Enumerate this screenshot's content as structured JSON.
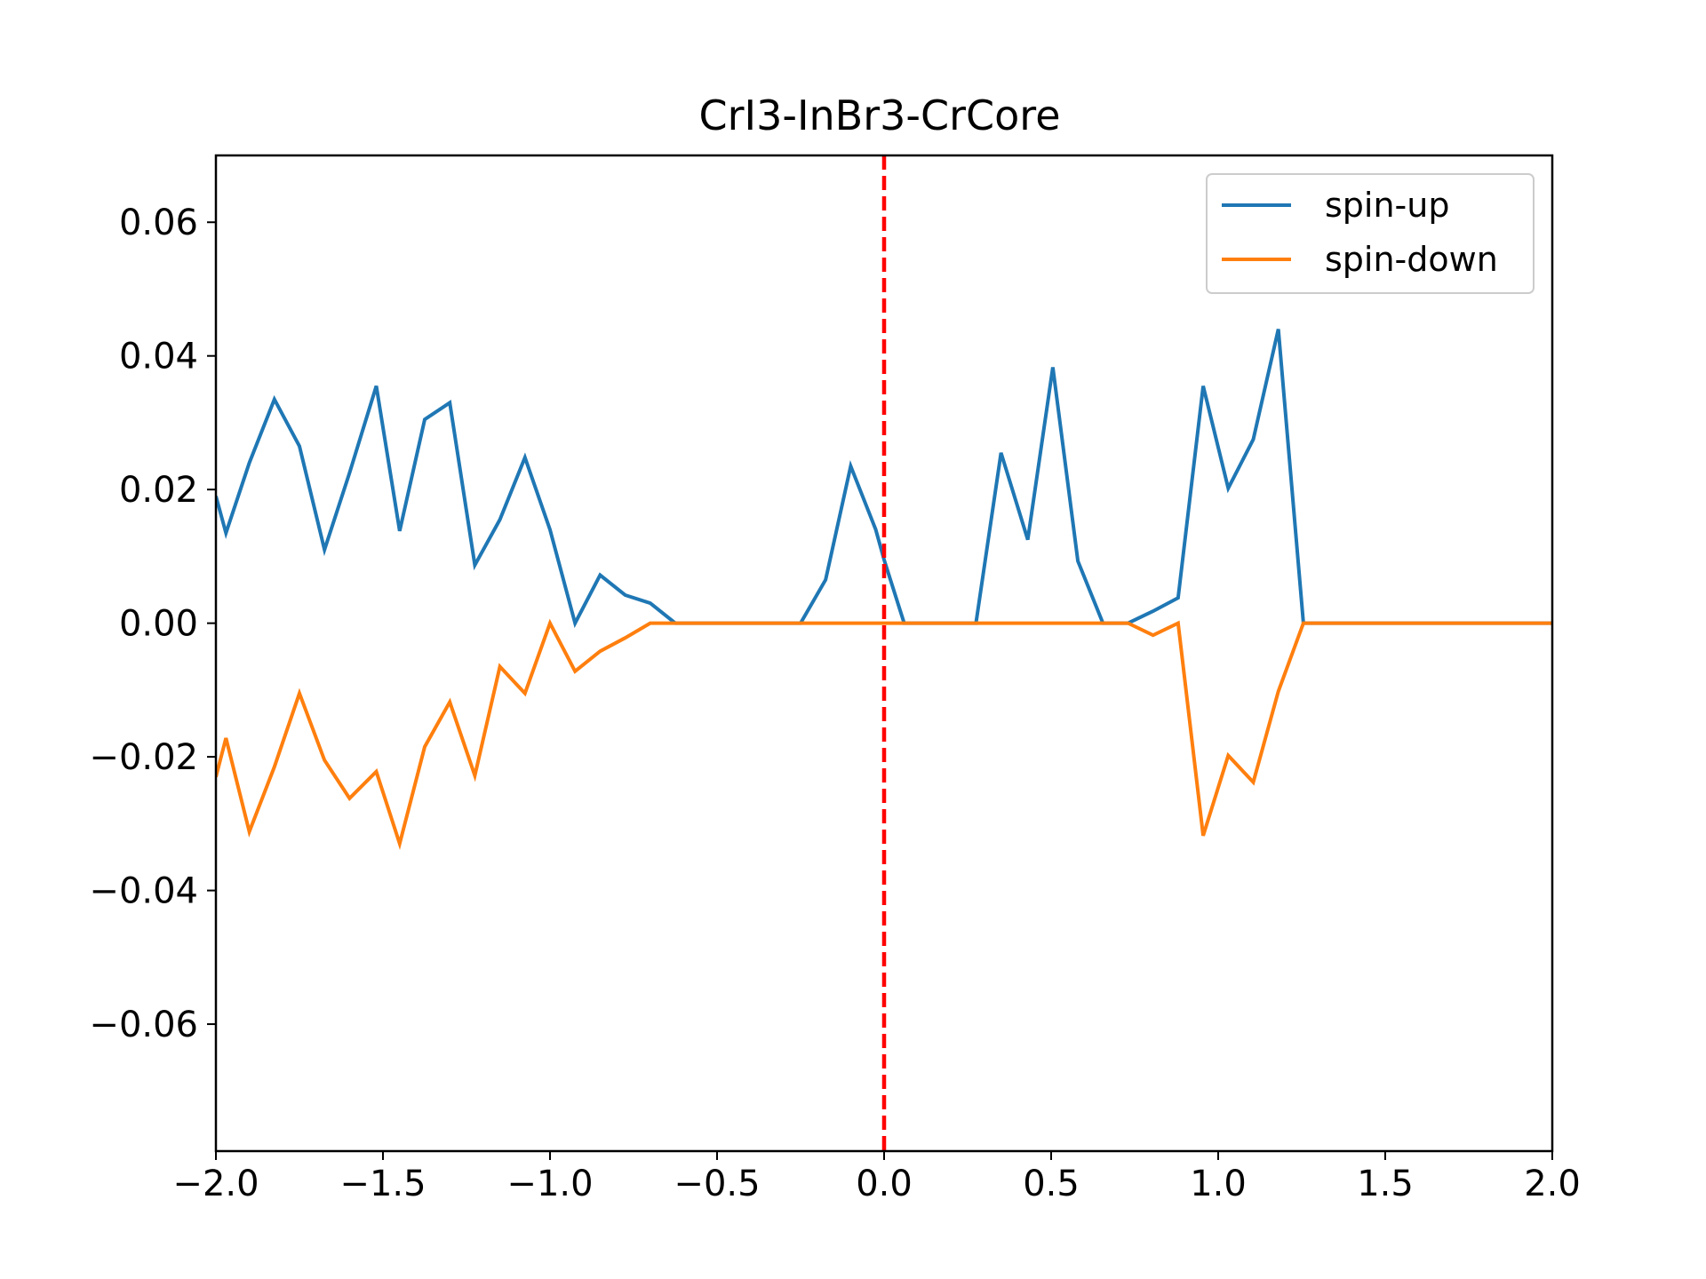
{
  "chart_data": {
    "type": "line",
    "title": "CrI3-InBr3-CrCore",
    "xlabel": "",
    "ylabel": "",
    "xlim": [
      -2.0,
      2.0
    ],
    "ylim": [
      -0.079,
      0.07
    ],
    "xticks": [
      -2.0,
      -1.5,
      -1.0,
      -0.5,
      0.0,
      0.5,
      1.0,
      1.5,
      2.0
    ],
    "xtick_labels": [
      "−2.0",
      "−1.5",
      "−1.0",
      "−0.5",
      "0.0",
      "0.5",
      "1.0",
      "1.5",
      "2.0"
    ],
    "yticks": [
      -0.06,
      -0.04,
      -0.02,
      0.0,
      0.02,
      0.04,
      0.06
    ],
    "ytick_labels": [
      "−0.06",
      "−0.04",
      "−0.02",
      "0.00",
      "0.02",
      "0.04",
      "0.06"
    ],
    "grid": false,
    "legend_position": "top-right",
    "vline": {
      "x": 0.0,
      "color": "#ff0000",
      "style": "dashed"
    },
    "series": [
      {
        "name": "spin-up",
        "color": "#1f77b4",
        "x": [
          -2.0,
          -1.97,
          -1.9,
          -1.825,
          -1.75,
          -1.675,
          -1.6,
          -1.52,
          -1.45,
          -1.375,
          -1.3,
          -1.225,
          -1.15,
          -1.075,
          -1.0,
          -0.925,
          -0.85,
          -0.775,
          -0.7,
          -0.625,
          -0.55,
          -0.475,
          -0.4,
          -0.325,
          -0.25,
          -0.175,
          -0.1,
          -0.025,
          0.0,
          0.06,
          0.125,
          0.2,
          0.275,
          0.35,
          0.43,
          0.505,
          0.58,
          0.655,
          0.73,
          0.805,
          0.88,
          0.955,
          1.03,
          1.105,
          1.18,
          1.255,
          1.33,
          1.5,
          1.75,
          2.0
        ],
        "y": [
          0.019,
          0.0135,
          0.024,
          0.0335,
          0.0265,
          0.011,
          0.0225,
          0.0355,
          0.0138,
          0.0305,
          0.033,
          0.0087,
          0.0155,
          0.0248,
          0.014,
          0.0,
          0.0072,
          0.0042,
          0.003,
          0.0,
          0.0,
          0.0,
          0.0,
          0.0,
          0.0,
          0.0065,
          0.0235,
          0.014,
          0.0095,
          0.0,
          0.0,
          0.0,
          0.0,
          0.0255,
          0.0125,
          0.0383,
          0.0093,
          0.0,
          0.0,
          0.0018,
          0.0038,
          0.0355,
          0.0202,
          0.0275,
          0.044,
          0.0,
          0.0,
          0.0,
          0.0,
          0.0
        ]
      },
      {
        "name": "spin-down",
        "color": "#ff7f0e",
        "x": [
          -2.0,
          -1.97,
          -1.9,
          -1.825,
          -1.75,
          -1.675,
          -1.6,
          -1.52,
          -1.45,
          -1.375,
          -1.3,
          -1.225,
          -1.15,
          -1.075,
          -1.0,
          -0.925,
          -0.85,
          -0.775,
          -0.7,
          -0.625,
          -0.55,
          -0.475,
          -0.4,
          -0.325,
          -0.25,
          -0.175,
          -0.1,
          -0.025,
          0.0,
          0.06,
          0.125,
          0.2,
          0.275,
          0.35,
          0.43,
          0.505,
          0.58,
          0.655,
          0.73,
          0.805,
          0.88,
          0.955,
          1.03,
          1.105,
          1.18,
          1.255,
          1.33,
          1.5,
          1.75,
          2.0
        ],
        "y": [
          -0.023,
          -0.0172,
          -0.0312,
          -0.0215,
          -0.0105,
          -0.0205,
          -0.0262,
          -0.0222,
          -0.033,
          -0.0185,
          -0.0118,
          -0.0228,
          -0.0065,
          -0.0105,
          0.0,
          -0.0072,
          -0.0042,
          -0.0022,
          0.0,
          0.0,
          0.0,
          0.0,
          0.0,
          0.0,
          0.0,
          0.0,
          0.0,
          0.0,
          0.0,
          0.0,
          0.0,
          0.0,
          0.0,
          0.0,
          0.0,
          0.0,
          0.0,
          0.0,
          0.0,
          -0.0018,
          0.0,
          -0.0318,
          -0.0198,
          -0.0238,
          -0.0102,
          0.0,
          0.0,
          0.0,
          0.0,
          0.0
        ]
      }
    ]
  }
}
